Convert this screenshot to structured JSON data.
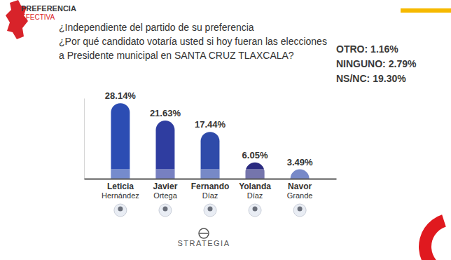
{
  "header": {
    "logo": [
      "PREFERENCIA",
      "EFECTIVA"
    ]
  },
  "footer": "STRATEGIA",
  "chart_data": {
    "type": "bar",
    "title": "¿Independiente del partido de su preferencia",
    "subtitle": "¿Por qué candidato votaría usted si hoy fueran las elecciones a Presidente municipal en SANTA CRUZ TLAXCALA?",
    "categories": [
      "Leticia Hernández",
      "Javier Ortega",
      "Fernando Díaz",
      "Yolanda Díaz",
      "Navor Grande"
    ],
    "values": [
      28.14,
      21.63,
      17.44,
      6.05,
      3.49
    ],
    "value_labels": [
      "28.14%",
      "21.63%",
      "17.44%",
      "6.05%",
      "3.49%"
    ],
    "colors": [
      "#2c4db3",
      "#2f3da0",
      "#2f4ba9",
      "#2b2b80",
      "#2e4bab"
    ],
    "data_labels": true,
    "tick_labels": "x",
    "ylim": [
      0,
      30
    ],
    "yticks": [],
    "other_responses": {
      "labels": [
        "OTRO:",
        "NINGUNO:",
        "NS/NC:"
      ],
      "values": [
        1.16,
        2.79,
        19.3
      ],
      "value_labels": [
        "1.16%",
        "2.79%",
        "19.30%"
      ]
    }
  }
}
